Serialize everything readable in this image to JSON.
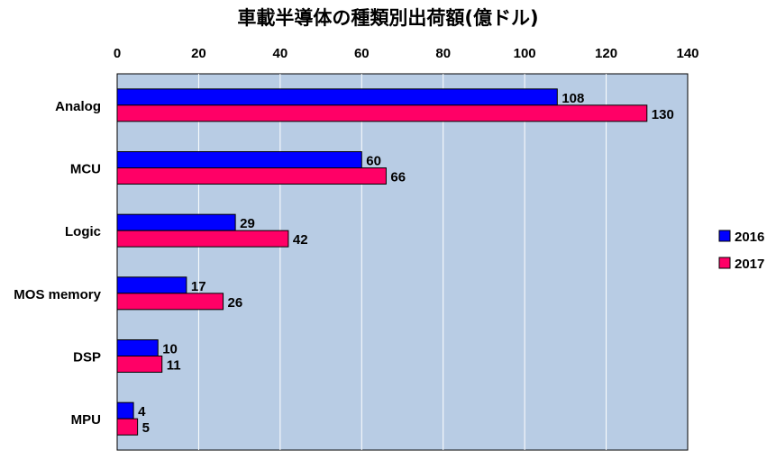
{
  "chart_data": {
    "type": "bar",
    "orientation": "horizontal",
    "title": "車載半導体の種類別出荷額(億ドル)",
    "categories": [
      "Analog",
      "MCU",
      "Logic",
      "MOS memory",
      "DSP",
      "MPU"
    ],
    "series": [
      {
        "name": "2016",
        "color": "#0000ff",
        "values": [
          108,
          60,
          29,
          17,
          10,
          4
        ]
      },
      {
        "name": "2017",
        "color": "#ff0066",
        "values": [
          130,
          66,
          42,
          26,
          11,
          5
        ]
      }
    ],
    "xlim": [
      0,
      140
    ],
    "xticks": [
      0,
      20,
      40,
      60,
      80,
      100,
      120,
      140
    ],
    "x_axis_position": "top",
    "grid": "vertical",
    "legend_position": "right",
    "plot_background": "#b8cce4"
  }
}
